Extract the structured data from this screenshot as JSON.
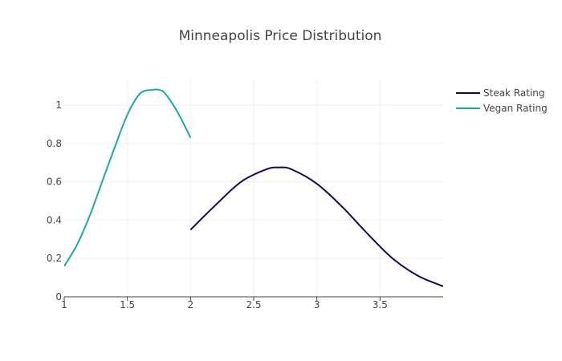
{
  "chart_data": {
    "type": "line",
    "title": "Minneapolis Price Distribution",
    "xlabel": "",
    "ylabel": "",
    "xlim": [
      1,
      4.0
    ],
    "ylim": [
      0,
      1.13
    ],
    "x_ticks": [
      1,
      1.5,
      2,
      2.5,
      3,
      3.5
    ],
    "y_ticks": [
      0,
      0.2,
      0.4,
      0.6,
      0.8,
      1
    ],
    "x_tick_labels": [
      "1",
      "1.5",
      "2",
      "2.5",
      "3",
      "3.5"
    ],
    "y_tick_labels": [
      "0",
      "0.2",
      "0.4",
      "0.6",
      "0.8",
      "1"
    ],
    "grid": true,
    "legend_position": "top-right",
    "series": [
      {
        "name": "Steak Rating",
        "color": "#0a0a5a",
        "x": [
          2.0,
          2.2,
          2.4,
          2.6,
          2.7,
          2.8,
          3.0,
          3.2,
          3.4,
          3.6,
          3.8,
          4.0
        ],
        "y": [
          0.35,
          0.48,
          0.6,
          0.665,
          0.675,
          0.665,
          0.59,
          0.47,
          0.33,
          0.2,
          0.11,
          0.055
        ]
      },
      {
        "name": "Vegan Rating",
        "color": "#1aa9a6",
        "x": [
          1.0,
          1.1,
          1.2,
          1.3,
          1.4,
          1.5,
          1.6,
          1.7,
          1.75,
          1.8,
          1.9,
          2.0
        ],
        "y": [
          0.16,
          0.27,
          0.42,
          0.6,
          0.78,
          0.95,
          1.06,
          1.08,
          1.08,
          1.06,
          0.96,
          0.83
        ]
      }
    ]
  }
}
